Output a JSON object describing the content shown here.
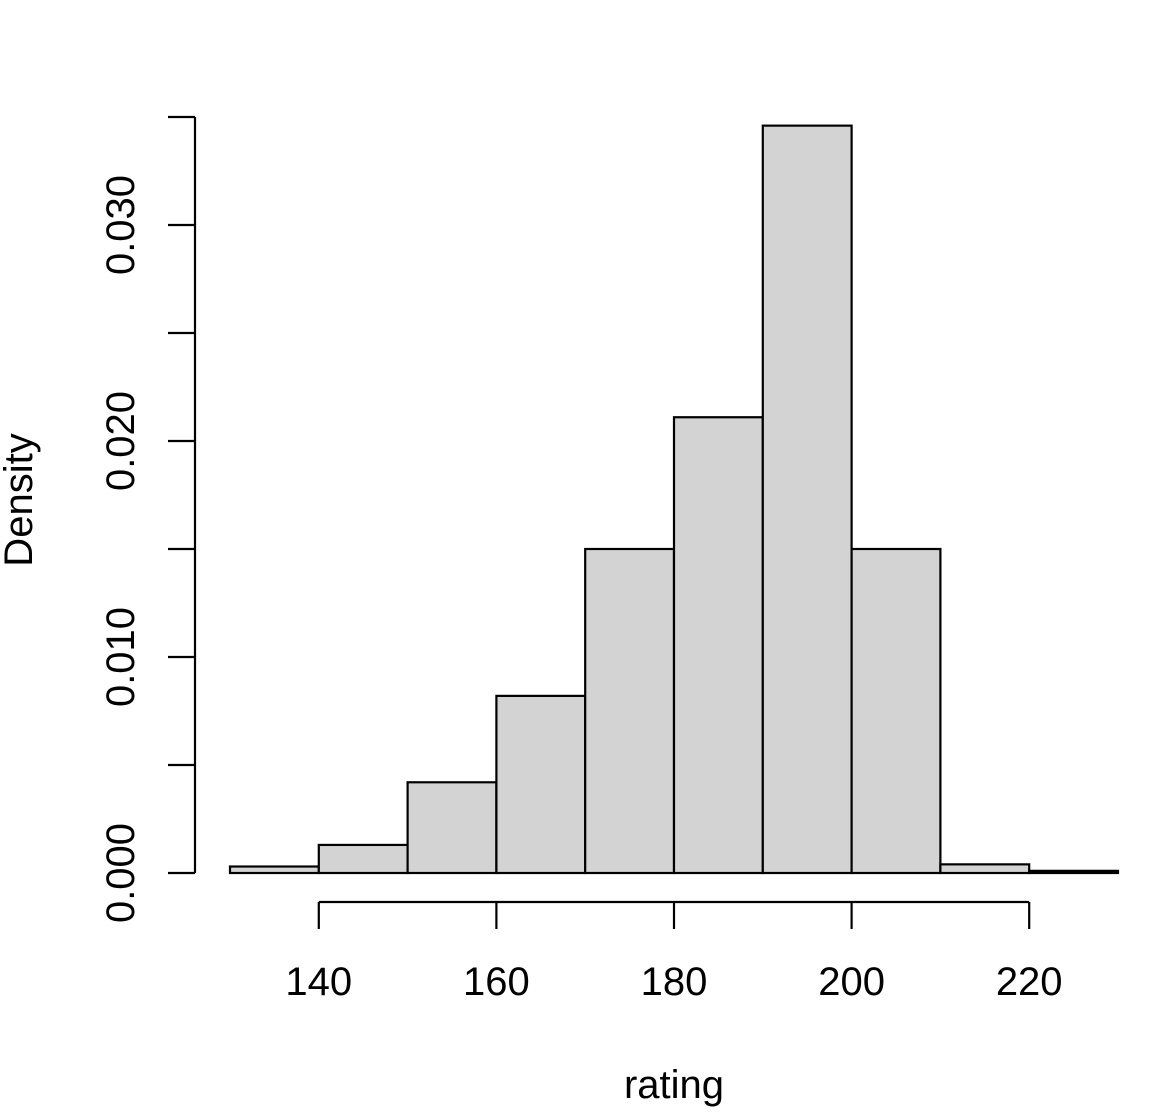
{
  "chart_data": {
    "type": "bar",
    "subtype": "histogram",
    "title": "",
    "xlabel": "rating",
    "ylabel": "Density",
    "bin_edges": [
      130,
      140,
      150,
      160,
      170,
      180,
      190,
      200,
      210,
      220,
      230
    ],
    "values": [
      0.0003,
      0.0013,
      0.0042,
      0.0082,
      0.015,
      0.0211,
      0.0346,
      0.015,
      0.0004,
      0.0001
    ],
    "xlim": [
      130,
      230
    ],
    "ylim": [
      0,
      0.035
    ],
    "x_ticks": [
      140,
      160,
      180,
      200,
      220
    ],
    "x_tick_labels": [
      "140",
      "160",
      "180",
      "200",
      "220"
    ],
    "y_ticks": [
      0,
      0.005,
      0.01,
      0.015,
      0.02,
      0.025,
      0.03,
      0.035
    ],
    "y_tick_labels": [
      "0.000",
      "",
      "0.010",
      "",
      "0.020",
      "",
      "0.030",
      ""
    ],
    "bar_fill": "#d3d3d3",
    "grid": false,
    "legend": "none"
  }
}
